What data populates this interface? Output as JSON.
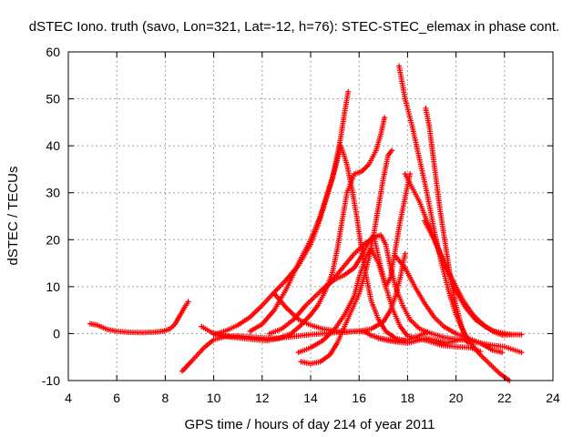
{
  "chart_data": {
    "type": "scatter",
    "title": "dSTEC Iono. truth (savo, Lon=321, Lat=-12, h=76): STEC-STEC_elemax in phase cont.",
    "xlabel": "GPS time / hours of day 214 of year 2011",
    "ylabel": "dSTEC  / TECUs",
    "xlim": [
      4,
      24
    ],
    "ylim": [
      -10,
      60
    ],
    "xticks": [
      4,
      6,
      8,
      10,
      12,
      14,
      16,
      18,
      20,
      22,
      24
    ],
    "yticks": [
      -10,
      0,
      10,
      20,
      30,
      40,
      50,
      60
    ],
    "grid": true,
    "marker": "+",
    "color": "#ff0000",
    "series": [
      {
        "points": [
          [
            4.9,
            2.1
          ],
          [
            5.2,
            1.8
          ],
          [
            5.6,
            0.9
          ],
          [
            6.0,
            0.5
          ],
          [
            6.5,
            0.3
          ],
          [
            7.0,
            0.2
          ],
          [
            7.5,
            0.3
          ],
          [
            7.9,
            0.5
          ],
          [
            8.2,
            1.0
          ],
          [
            8.4,
            2.0
          ],
          [
            8.6,
            3.8
          ],
          [
            8.8,
            5.6
          ],
          [
            8.95,
            6.8
          ]
        ]
      },
      {
        "points": [
          [
            8.7,
            -8.0
          ],
          [
            9.1,
            -5.8
          ],
          [
            9.6,
            -3.0
          ],
          [
            10.0,
            -1.3
          ],
          [
            10.5,
            -0.6
          ],
          [
            11.0,
            -0.5
          ],
          [
            11.5,
            -0.7
          ],
          [
            12.0,
            -0.9
          ],
          [
            12.5,
            -1.0
          ],
          [
            13.0,
            -0.8
          ],
          [
            13.5,
            -0.5
          ],
          [
            14.0,
            -0.2
          ],
          [
            14.5,
            0.0
          ],
          [
            15.0,
            0.2
          ],
          [
            15.5,
            0.3
          ],
          [
            16.0,
            0.6
          ],
          [
            16.3,
            0.2
          ],
          [
            16.5,
            -0.4
          ],
          [
            16.8,
            -0.9
          ],
          [
            17.2,
            -1.3
          ],
          [
            17.6,
            -1.6
          ],
          [
            18.0,
            -1.4
          ],
          [
            18.4,
            -0.6
          ],
          [
            18.8,
            0.2
          ]
        ]
      },
      {
        "points": [
          [
            9.5,
            1.5
          ],
          [
            9.9,
            0.3
          ],
          [
            10.3,
            -0.4
          ],
          [
            10.8,
            -0.8
          ],
          [
            11.2,
            -1.0
          ],
          [
            11.7,
            -1.3
          ],
          [
            12.2,
            -1.5
          ],
          [
            12.7,
            -1.0
          ],
          [
            13.2,
            0.0
          ],
          [
            13.6,
            1.8
          ],
          [
            14.0,
            4.0
          ],
          [
            14.3,
            6.0
          ],
          [
            14.6,
            9.0
          ],
          [
            14.9,
            13.0
          ],
          [
            15.1,
            18.0
          ],
          [
            15.3,
            24.0
          ],
          [
            15.5,
            30.0
          ],
          [
            15.8,
            34.0
          ],
          [
            16.1,
            34.5
          ],
          [
            16.4,
            36.0
          ],
          [
            16.7,
            39.0
          ],
          [
            16.9,
            42.5
          ],
          [
            17.05,
            46.0
          ]
        ]
      },
      {
        "points": [
          [
            10.0,
            -0.2
          ],
          [
            10.5,
            0.6
          ],
          [
            11.0,
            1.8
          ],
          [
            11.5,
            3.5
          ],
          [
            12.0,
            6.0
          ],
          [
            12.5,
            8.8
          ],
          [
            13.0,
            11.5
          ],
          [
            13.5,
            14.5
          ],
          [
            14.0,
            19.0
          ],
          [
            14.3,
            23.0
          ],
          [
            14.6,
            28.0
          ],
          [
            14.9,
            33.0
          ],
          [
            15.1,
            38.0
          ],
          [
            15.25,
            42.0
          ],
          [
            15.4,
            47.0
          ],
          [
            15.55,
            51.5
          ]
        ]
      },
      {
        "points": [
          [
            11.5,
            0.5
          ],
          [
            12.0,
            2.0
          ],
          [
            12.5,
            5.0
          ],
          [
            13.0,
            9.5
          ],
          [
            13.5,
            15.0
          ],
          [
            14.0,
            20.0
          ],
          [
            14.4,
            25.0
          ],
          [
            14.7,
            30.0
          ],
          [
            15.0,
            35.0
          ],
          [
            15.25,
            40.0
          ],
          [
            15.5,
            36.0
          ],
          [
            15.7,
            31.0
          ],
          [
            15.9,
            25.0
          ],
          [
            16.1,
            18.0
          ],
          [
            16.3,
            12.0
          ],
          [
            16.5,
            7.0
          ],
          [
            16.8,
            3.0
          ],
          [
            17.1,
            0.5
          ],
          [
            17.5,
            -1.0
          ],
          [
            17.9,
            -1.5
          ]
        ]
      },
      {
        "points": [
          [
            12.3,
            0.0
          ],
          [
            12.8,
            1.0
          ],
          [
            13.3,
            3.0
          ],
          [
            13.8,
            6.0
          ],
          [
            14.2,
            8.0
          ],
          [
            14.6,
            10.0
          ],
          [
            15.0,
            11.5
          ],
          [
            15.4,
            12.5
          ],
          [
            15.8,
            14.0
          ],
          [
            16.1,
            16.5
          ],
          [
            16.4,
            19.5
          ],
          [
            16.6,
            21.0
          ],
          [
            16.9,
            14.0
          ],
          [
            17.1,
            10.0
          ],
          [
            17.3,
            12.0
          ],
          [
            17.5,
            18.0
          ],
          [
            17.7,
            24.0
          ],
          [
            17.9,
            29.0
          ],
          [
            18.1,
            34.0
          ]
        ]
      },
      {
        "points": [
          [
            12.5,
            8.5
          ],
          [
            13.0,
            5.5
          ],
          [
            13.5,
            3.0
          ],
          [
            14.0,
            1.8
          ],
          [
            14.5,
            1.0
          ],
          [
            15.0,
            0.6
          ],
          [
            15.5,
            0.4
          ],
          [
            16.0,
            0.5
          ],
          [
            16.5,
            1.0
          ],
          [
            17.0,
            2.5
          ],
          [
            17.3,
            5.0
          ],
          [
            17.5,
            8.0
          ],
          [
            17.7,
            12.0
          ],
          [
            17.9,
            17.0
          ]
        ]
      },
      {
        "points": [
          [
            13.6,
            -6.0
          ],
          [
            14.0,
            -6.4
          ],
          [
            14.4,
            -6.0
          ],
          [
            14.8,
            -4.5
          ],
          [
            15.1,
            -2.0
          ],
          [
            15.4,
            1.5
          ],
          [
            15.7,
            5.0
          ],
          [
            16.0,
            8.5
          ],
          [
            16.2,
            12.0
          ],
          [
            16.4,
            16.0
          ],
          [
            16.6,
            21.0
          ],
          [
            16.8,
            27.0
          ],
          [
            17.0,
            33.0
          ],
          [
            17.2,
            38.0
          ],
          [
            17.35,
            39.0
          ]
        ]
      },
      {
        "points": [
          [
            13.5,
            -4.0
          ],
          [
            14.0,
            -3.0
          ],
          [
            14.5,
            -1.5
          ],
          [
            15.0,
            1.0
          ],
          [
            15.4,
            4.0
          ],
          [
            15.8,
            8.0
          ],
          [
            16.0,
            12.0
          ],
          [
            16.3,
            16.5
          ],
          [
            16.5,
            18.0
          ],
          [
            16.8,
            15.0
          ],
          [
            17.1,
            10.0
          ],
          [
            17.4,
            5.0
          ],
          [
            17.7,
            1.5
          ],
          [
            18.0,
            -0.5
          ],
          [
            18.4,
            -1.0
          ],
          [
            18.8,
            -1.5
          ],
          [
            19.4,
            -2.5
          ],
          [
            20.0,
            -2.8
          ],
          [
            20.6,
            -3.0
          ],
          [
            21.0,
            -3.8
          ]
        ]
      },
      {
        "points": [
          [
            14.5,
            9.0
          ],
          [
            15.0,
            12.0
          ],
          [
            15.4,
            14.5
          ],
          [
            15.8,
            17.0
          ],
          [
            16.2,
            19.0
          ],
          [
            16.6,
            20.5
          ],
          [
            16.9,
            21.0
          ],
          [
            17.1,
            19.0
          ],
          [
            17.3,
            14.0
          ],
          [
            17.5,
            10.0
          ],
          [
            17.8,
            6.0
          ],
          [
            18.1,
            3.0
          ],
          [
            18.5,
            1.0
          ],
          [
            19.0,
            0.0
          ],
          [
            19.5,
            -0.8
          ],
          [
            20.0,
            -1.2
          ],
          [
            20.5,
            -1.5
          ],
          [
            21.0,
            -2.0
          ],
          [
            21.5,
            -2.5
          ],
          [
            22.0,
            -2.8
          ],
          [
            22.7,
            -4.0
          ]
        ]
      },
      {
        "points": [
          [
            17.5,
            16.5
          ],
          [
            17.9,
            14.0
          ],
          [
            18.3,
            10.0
          ],
          [
            18.7,
            6.5
          ],
          [
            19.1,
            3.5
          ],
          [
            19.5,
            1.5
          ],
          [
            20.0,
            0.0
          ],
          [
            20.5,
            -1.0
          ],
          [
            21.0,
            -2.0
          ],
          [
            21.5,
            -3.5
          ],
          [
            21.9,
            -4.0
          ]
        ]
      },
      {
        "points": [
          [
            17.65,
            57.0
          ],
          [
            17.9,
            50.0
          ],
          [
            18.2,
            44.0
          ],
          [
            18.5,
            37.0
          ],
          [
            18.8,
            30.0
          ],
          [
            19.1,
            22.0
          ],
          [
            19.4,
            15.0
          ],
          [
            19.7,
            9.0
          ],
          [
            20.0,
            4.0
          ],
          [
            20.3,
            0.5
          ],
          [
            20.6,
            -2.0
          ],
          [
            21.0,
            -4.5
          ],
          [
            21.4,
            -6.5
          ],
          [
            21.8,
            -8.5
          ],
          [
            22.2,
            -10.0
          ]
        ]
      },
      {
        "points": [
          [
            17.9,
            34.0
          ],
          [
            18.2,
            31.0
          ],
          [
            18.5,
            28.0
          ],
          [
            18.8,
            24.0
          ],
          [
            19.2,
            19.0
          ],
          [
            19.6,
            14.0
          ],
          [
            20.0,
            9.0
          ],
          [
            20.4,
            5.5
          ],
          [
            20.8,
            3.0
          ],
          [
            21.2,
            1.5
          ],
          [
            21.6,
            0.5
          ],
          [
            22.0,
            0.0
          ],
          [
            22.3,
            -0.2
          ],
          [
            22.7,
            -0.2
          ]
        ]
      },
      {
        "points": [
          [
            18.7,
            24.0
          ],
          [
            19.1,
            20.0
          ],
          [
            19.5,
            15.0
          ],
          [
            19.9,
            11.0
          ],
          [
            20.3,
            7.0
          ],
          [
            20.7,
            4.0
          ],
          [
            21.1,
            2.0
          ],
          [
            21.5,
            0.5
          ],
          [
            21.9,
            -0.3
          ],
          [
            22.3,
            -0.2
          ]
        ]
      },
      {
        "points": [
          [
            18.75,
            48.0
          ],
          [
            18.9,
            44.0
          ],
          [
            19.05,
            38.0
          ],
          [
            19.2,
            32.0
          ],
          [
            19.35,
            26.0
          ],
          [
            19.5,
            21.0
          ],
          [
            19.65,
            16.0
          ],
          [
            19.8,
            11.0
          ],
          [
            20.0,
            6.0
          ],
          [
            20.2,
            2.0
          ],
          [
            20.4,
            -1.0
          ],
          [
            20.5,
            -2.0
          ]
        ]
      },
      {
        "points": [
          [
            16.8,
            -1.0
          ],
          [
            17.2,
            -1.5
          ],
          [
            17.6,
            -1.8
          ],
          [
            18.0,
            -2.0
          ],
          [
            18.4,
            -1.5
          ],
          [
            18.8,
            -1.0
          ],
          [
            19.2,
            -1.5
          ],
          [
            19.6,
            -2.0
          ],
          [
            20.0,
            -1.5
          ],
          [
            20.4,
            -1.0
          ]
        ]
      }
    ]
  }
}
